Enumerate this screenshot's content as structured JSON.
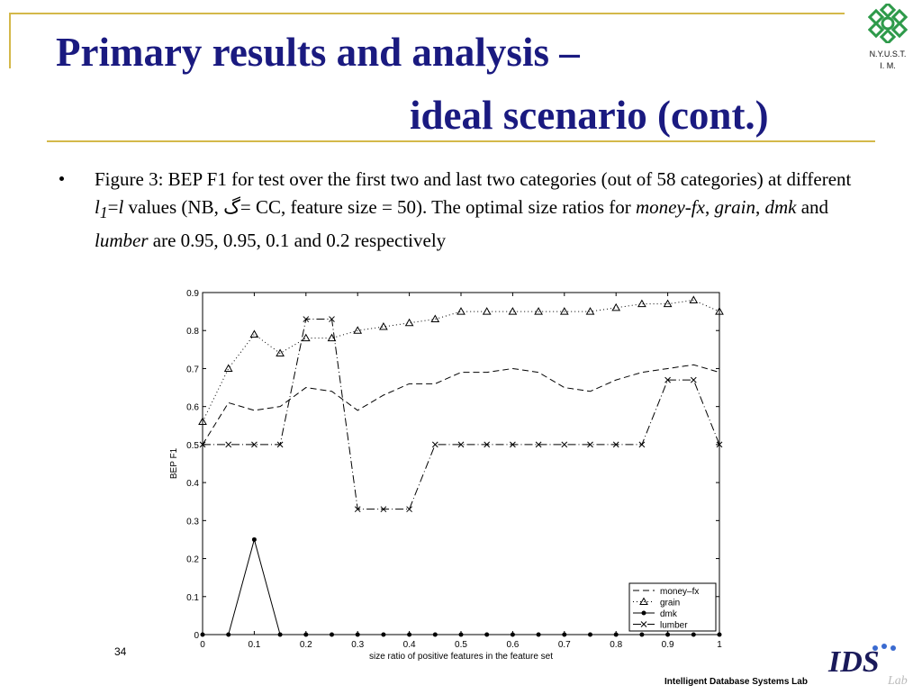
{
  "slide": {
    "title_line1": "Primary results and analysis  –",
    "title_line2": "ideal scenario (cont.)",
    "logo_text_line1": "N.Y.U.S.T.",
    "logo_text_line2": "I. M.",
    "bullet": {
      "pre": "Figure 3: BEP F1 for test over the first two and last two categories (out of 58 categories) at different ",
      "l1_base": "l",
      "l1_sub": "1",
      "eq": "=",
      "l": "l",
      "mid": " values (NB, ",
      "symbol": "گ",
      "post": "= CC, feature size = 50). The optimal size ratios for ",
      "c1": "money-fx",
      "sep1": ", ",
      "c2": "grain",
      "sep2": ", ",
      "c3": "dmk",
      "and_text": " and ",
      "c4": "lumber",
      "end": " are 0.95, 0.95, 0.1 and 0.2 respectively"
    },
    "page_number": "34",
    "footer_lab": "Intelligent Database Systems Lab",
    "footer_logo_text": "IDS",
    "footer_logo_sub": "Lab",
    "colors": {
      "title": "#1a1a80",
      "rule": "#d4b84a",
      "logo_green": "#2e9a4a"
    }
  },
  "chart_data": {
    "type": "line",
    "xlabel": "size ratio of positive features in the feature set",
    "ylabel": "BEP F1",
    "xlim": [
      0,
      1
    ],
    "ylim": [
      0,
      0.9
    ],
    "x_ticks": [
      0,
      0.1,
      0.2,
      0.3,
      0.4,
      0.5,
      0.6,
      0.7,
      0.8,
      0.9,
      1
    ],
    "x_tick_labels": [
      "0",
      "0.1",
      "0.2",
      "0.3",
      "0.4",
      "0.5",
      "0.6",
      "0.7",
      "0.8",
      "0.9",
      "1"
    ],
    "y_ticks": [
      0,
      0.1,
      0.2,
      0.3,
      0.4,
      0.5,
      0.6,
      0.7,
      0.8,
      0.9
    ],
    "y_tick_labels": [
      "0",
      "0.1",
      "0.2",
      "0.3",
      "0.4",
      "0.5",
      "0.6",
      "0.7",
      "0.8",
      "0.9"
    ],
    "grid": false,
    "legend_position": "bottom-right",
    "x": [
      0,
      0.05,
      0.1,
      0.15,
      0.2,
      0.25,
      0.3,
      0.35,
      0.4,
      0.45,
      0.5,
      0.55,
      0.6,
      0.65,
      0.7,
      0.75,
      0.8,
      0.85,
      0.9,
      0.95,
      1
    ],
    "series": [
      {
        "name": "money–fx",
        "line": "dashed",
        "marker": "none",
        "values": [
          0.5,
          0.61,
          0.59,
          0.6,
          0.65,
          0.64,
          0.59,
          0.63,
          0.66,
          0.66,
          0.69,
          0.69,
          0.7,
          0.69,
          0.65,
          0.64,
          0.67,
          0.69,
          0.7,
          0.71,
          0.69
        ]
      },
      {
        "name": "grain",
        "line": "dotted",
        "marker": "triangle",
        "values": [
          0.56,
          0.7,
          0.79,
          0.74,
          0.78,
          0.78,
          0.8,
          0.81,
          0.82,
          0.83,
          0.85,
          0.85,
          0.85,
          0.85,
          0.85,
          0.85,
          0.86,
          0.87,
          0.87,
          0.88,
          0.85
        ]
      },
      {
        "name": "dmk",
        "line": "solid",
        "marker": "dot",
        "values": [
          0,
          0,
          0.25,
          0,
          0,
          0,
          0,
          0,
          0,
          0,
          0,
          0,
          0,
          0,
          0,
          0,
          0,
          0,
          0,
          0,
          0
        ]
      },
      {
        "name": "lumber",
        "line": "dashdot",
        "marker": "x",
        "values": [
          0.5,
          0.5,
          0.5,
          0.5,
          0.83,
          0.83,
          0.33,
          0.33,
          0.33,
          0.5,
          0.5,
          0.5,
          0.5,
          0.5,
          0.5,
          0.5,
          0.5,
          0.5,
          0.67,
          0.67,
          0.5
        ]
      }
    ]
  }
}
